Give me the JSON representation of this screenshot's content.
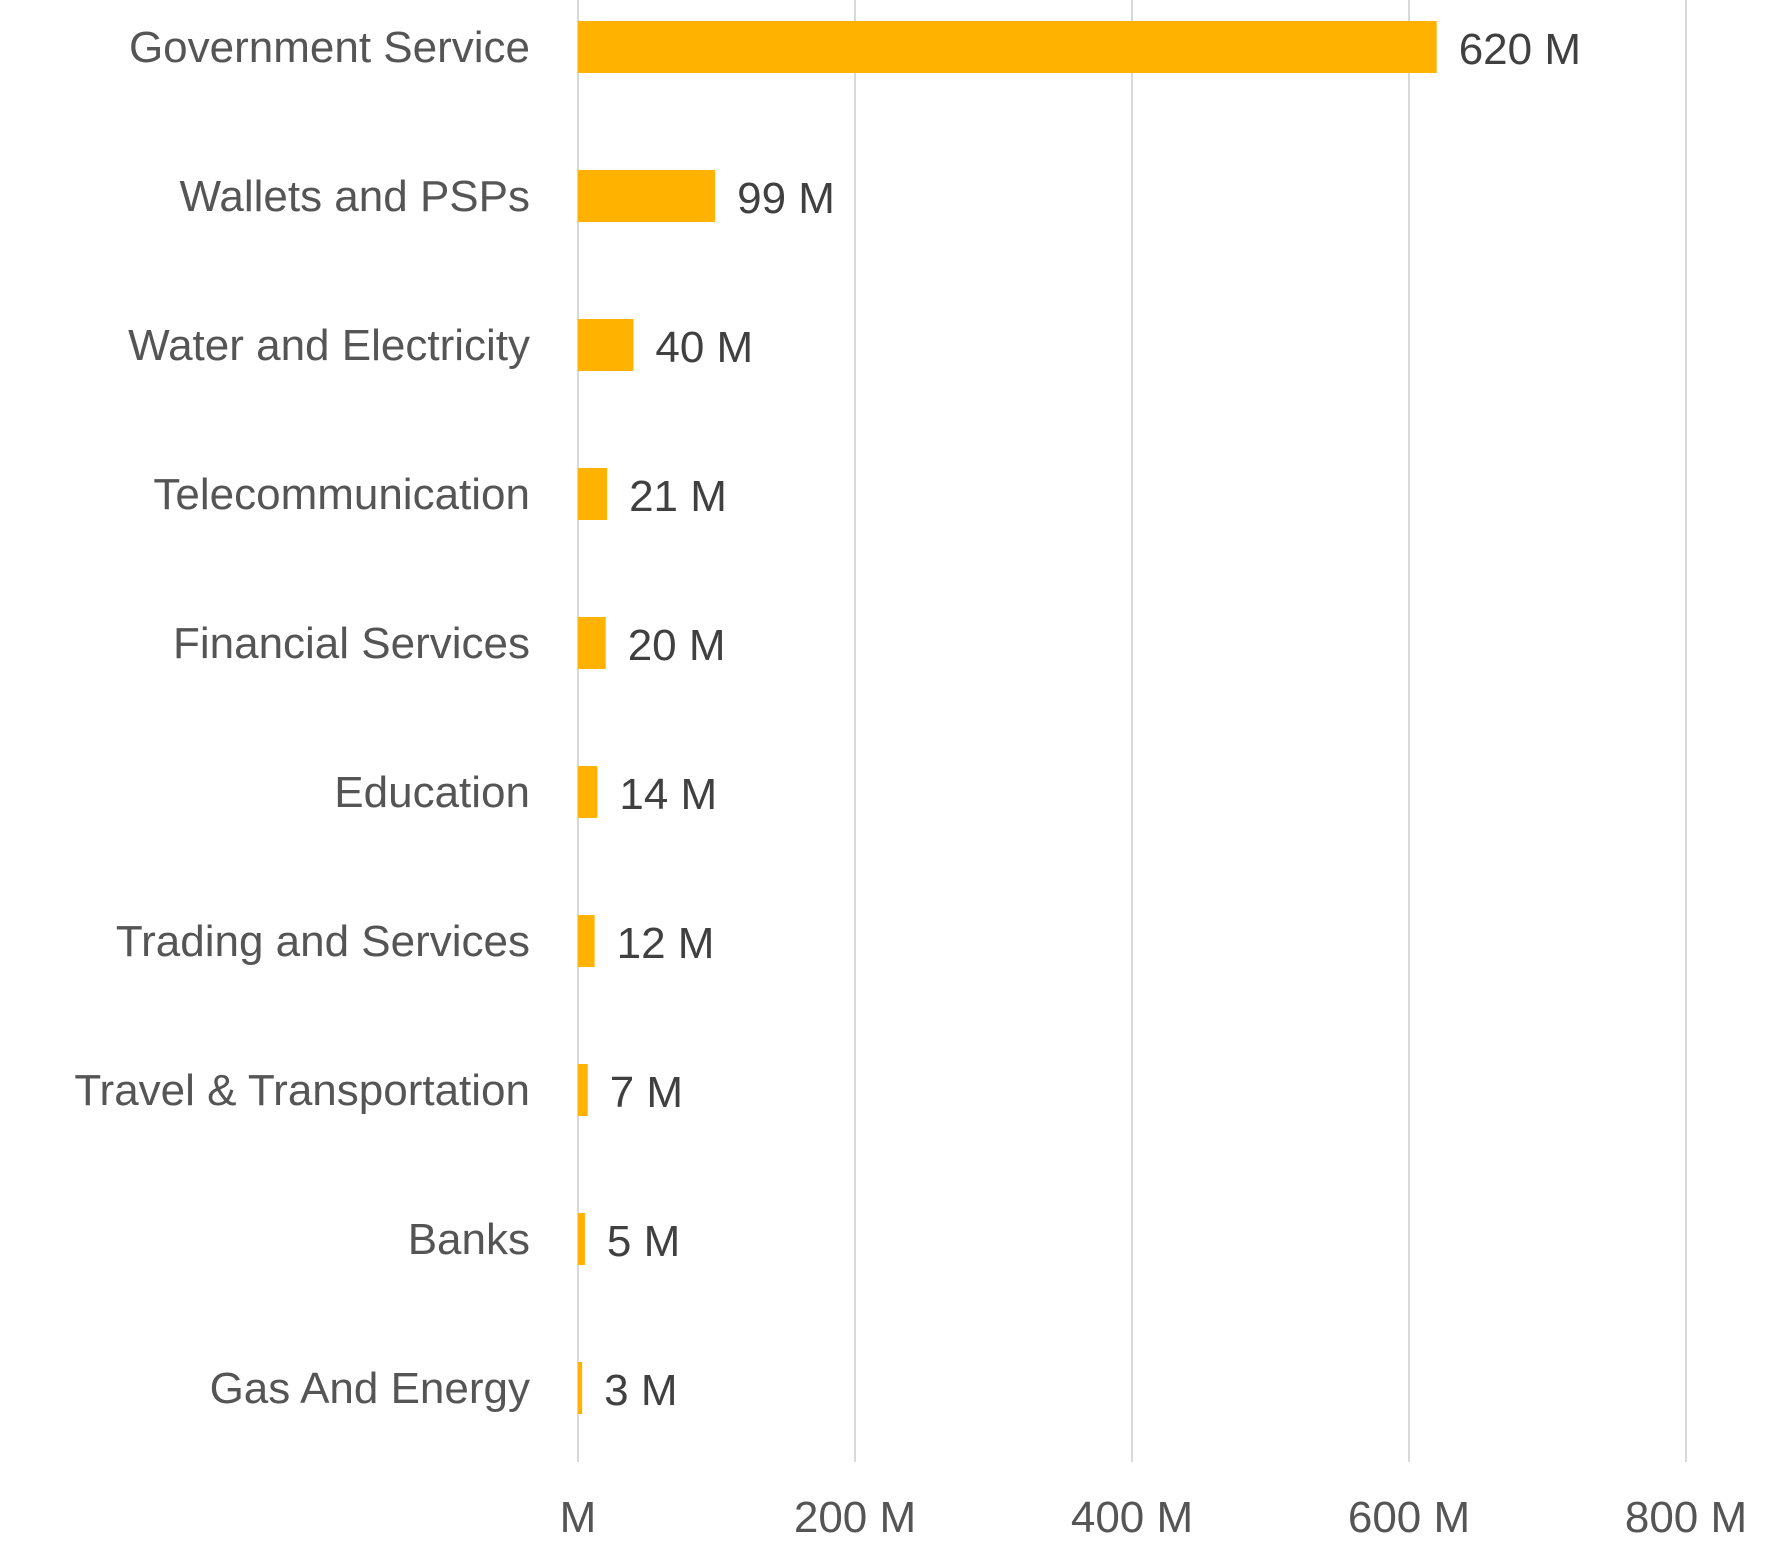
{
  "chart_data": {
    "type": "bar",
    "orientation": "horizontal",
    "title": "",
    "xlabel": "",
    "ylabel": "",
    "categories": [
      "Government Service",
      "Wallets and PSPs",
      "Water and Electricity",
      "Telecommunication",
      "Financial Services",
      "Education",
      "Trading and Services",
      "Travel & Transportation",
      "Banks",
      "Gas And Energy"
    ],
    "values": [
      620,
      99,
      40,
      21,
      20,
      14,
      12,
      7,
      5,
      3
    ],
    "value_labels": [
      "620 M",
      "99 M",
      "40 M",
      "21 M",
      "20 M",
      "14 M",
      "12 M",
      "7 M",
      "5 M",
      "3 M"
    ],
    "xlim": [
      0,
      800
    ],
    "xticks": [
      0,
      200,
      400,
      600,
      800
    ],
    "xtick_labels": [
      "M",
      "200 M",
      "400 M",
      "600 M",
      "800 M"
    ],
    "bar_color": "#FFB300",
    "grid": true,
    "legend": "none"
  }
}
